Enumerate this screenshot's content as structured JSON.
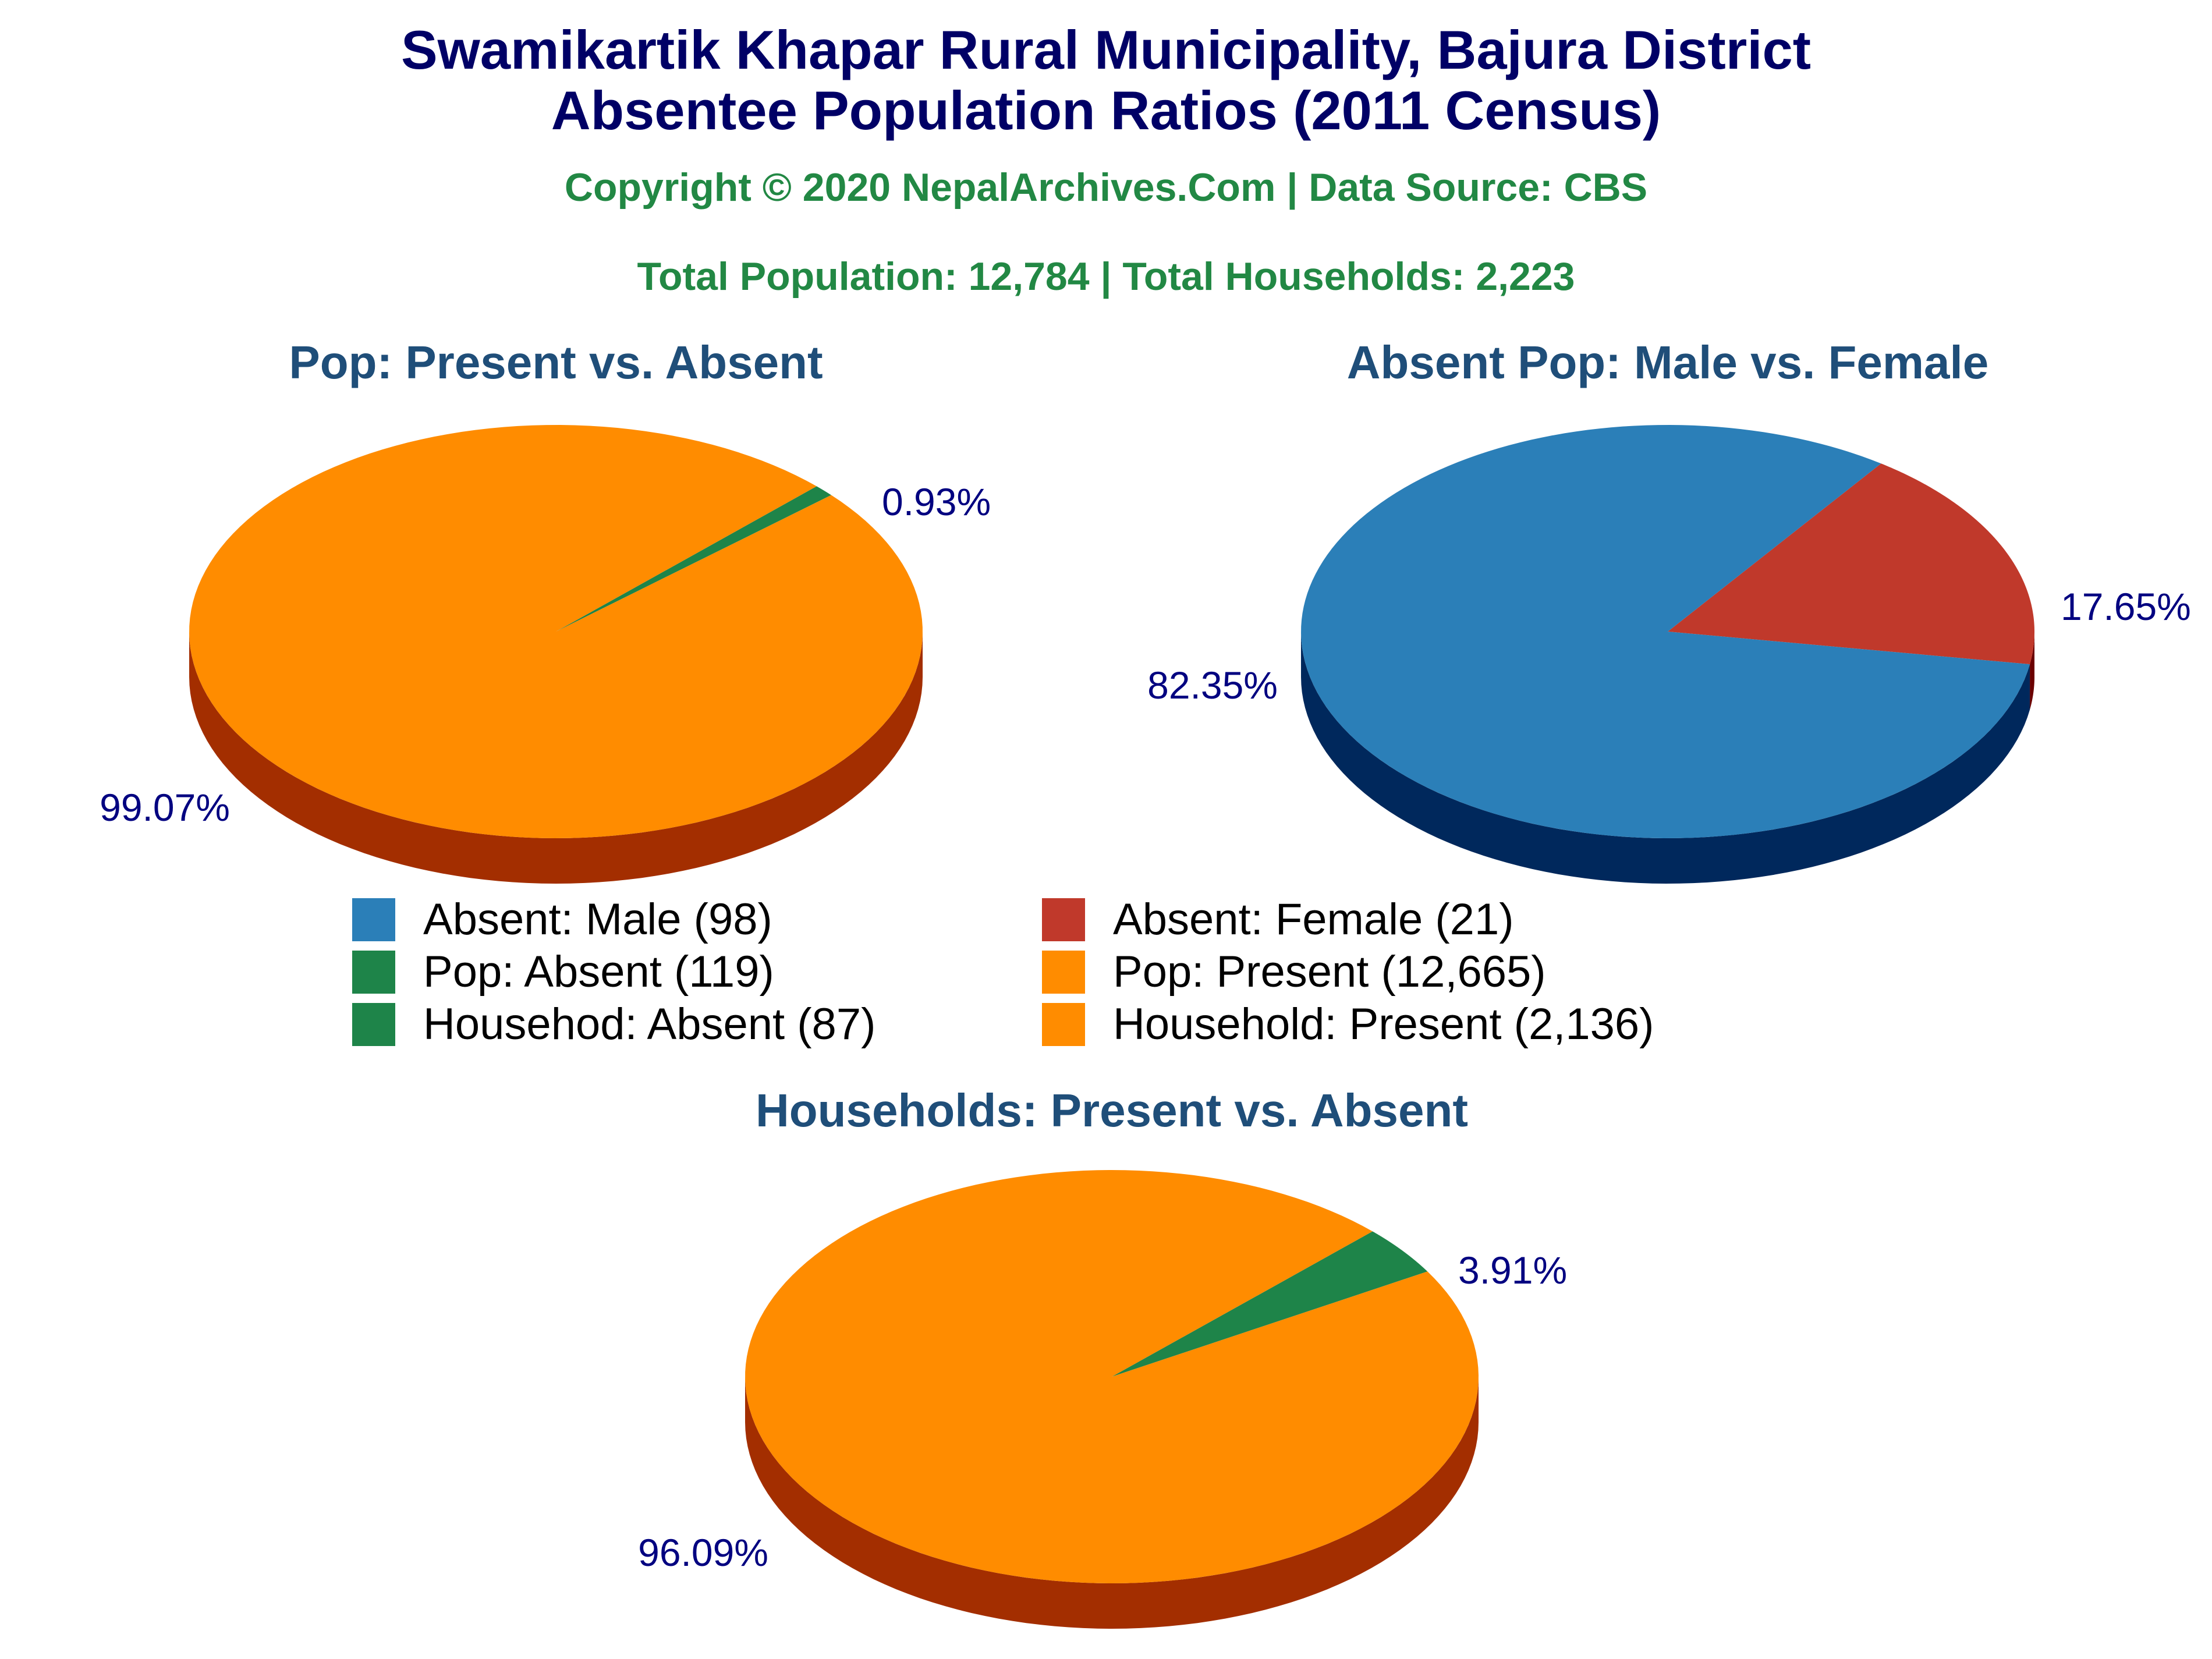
{
  "header": {
    "title_line1": "Swamikartik Khapar Rural Municipality, Bajura District",
    "title_line2": "Absentee Population Ratios (2011 Census)",
    "copyright": "Copyright © 2020 NepalArchives.Com | Data Source: CBS",
    "totals": "Total Population: 12,784 | Total Households: 2,223"
  },
  "colors": {
    "title": "#000066",
    "subtitle": "#228844",
    "chart_title": "#1f4e79",
    "slice_label": "#000080",
    "male": "#2b7fb8",
    "male_side": "#00285c",
    "female": "#c0392b",
    "female_side": "#6b0000",
    "absent": "#1e8449",
    "absent_side": "#0b4a22",
    "present": "#ff8c00",
    "present_side": "#a32e00"
  },
  "chart_data": [
    {
      "type": "pie",
      "title": "Pop: Present vs. Absent",
      "slices": [
        {
          "name": "Pop: Absent",
          "value": 119,
          "percent": 0.93,
          "label": "0.93%",
          "color": "#1e8449",
          "side_color": "#0b4a22"
        },
        {
          "name": "Pop: Present",
          "value": 12665,
          "percent": 99.07,
          "label": "99.07%",
          "color": "#ff8c00",
          "side_color": "#a32e00"
        }
      ]
    },
    {
      "type": "pie",
      "title": "Absent Pop: Male vs. Female",
      "slices": [
        {
          "name": "Absent: Female",
          "value": 21,
          "percent": 17.65,
          "label": "17.65%",
          "color": "#c0392b",
          "side_color": "#6b0000"
        },
        {
          "name": "Absent: Male",
          "value": 98,
          "percent": 82.35,
          "label": "82.35%",
          "color": "#2b7fb8",
          "side_color": "#00285c"
        }
      ]
    },
    {
      "type": "pie",
      "title": "Households: Present vs. Absent",
      "slices": [
        {
          "name": "Househod: Absent",
          "value": 87,
          "percent": 3.91,
          "label": "3.91%",
          "color": "#1e8449",
          "side_color": "#0b4a22"
        },
        {
          "name": "Household: Present",
          "value": 2136,
          "percent": 96.09,
          "label": "96.09%",
          "color": "#ff8c00",
          "side_color": "#a32e00"
        }
      ]
    }
  ],
  "legend": [
    {
      "label": "Absent: Male (98)",
      "color": "#2b7fb8"
    },
    {
      "label": "Absent: Female (21)",
      "color": "#c0392b"
    },
    {
      "label": "Pop: Absent (119)",
      "color": "#1e8449"
    },
    {
      "label": "Pop: Present (12,665)",
      "color": "#ff8c00"
    },
    {
      "label": "Househod: Absent (87)",
      "color": "#1e8449"
    },
    {
      "label": "Household: Present (2,136)",
      "color": "#ff8c00"
    }
  ]
}
